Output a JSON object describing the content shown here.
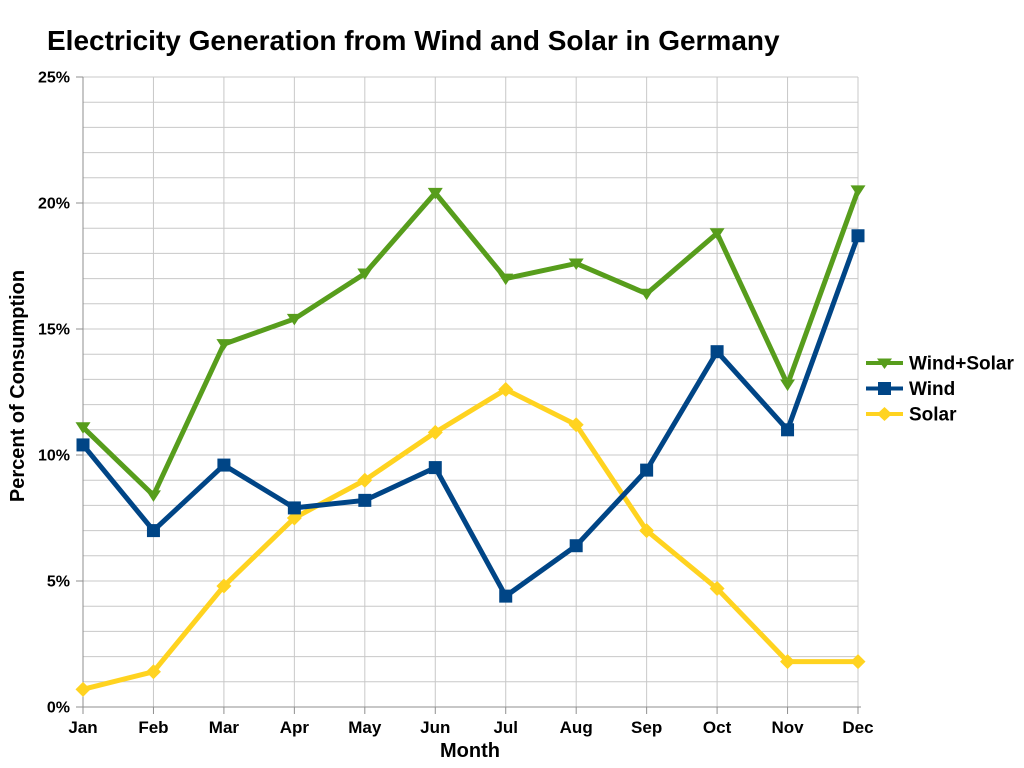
{
  "title": "Electricity Generation from Wind and Solar in Germany",
  "chart_data": {
    "type": "line",
    "title": "Electricity Generation from Wind and Solar in Germany",
    "xlabel": "Month",
    "ylabel": "Percent of Consumption",
    "categories": [
      "Jan",
      "Feb",
      "Mar",
      "Apr",
      "May",
      "Jun",
      "Jul",
      "Aug",
      "Sep",
      "Oct",
      "Nov",
      "Dec"
    ],
    "ylim": [
      0,
      25
    ],
    "y_ticks": [
      {
        "value": 0,
        "label": "0%"
      },
      {
        "value": 5,
        "label": "5%"
      },
      {
        "value": 10,
        "label": "10%"
      },
      {
        "value": 15,
        "label": "15%"
      },
      {
        "value": 20,
        "label": "20%"
      },
      {
        "value": 25,
        "label": "25%"
      }
    ],
    "grid": {
      "horizontal_interval_pct": 1,
      "vertical_interval": "every-month",
      "grid_color": "#c8c8c8",
      "axis_color": "#8f8f8f"
    },
    "legend_position": "right",
    "series": [
      {
        "name": "Wind+Solar",
        "color": "#579D1C",
        "marker": "triangle-down",
        "values": [
          11.1,
          8.4,
          14.4,
          15.4,
          17.2,
          20.4,
          17.0,
          17.6,
          16.4,
          18.8,
          12.8,
          20.5
        ]
      },
      {
        "name": "Wind",
        "color": "#004586",
        "marker": "square",
        "values": [
          10.4,
          7.0,
          9.6,
          7.9,
          8.2,
          9.5,
          4.4,
          6.4,
          9.4,
          14.1,
          11.0,
          18.7
        ]
      },
      {
        "name": "Solar",
        "color": "#FFD320",
        "marker": "diamond",
        "values": [
          0.7,
          1.4,
          4.8,
          7.5,
          9.0,
          10.9,
          12.6,
          11.2,
          7.0,
          4.7,
          1.8,
          1.8
        ]
      }
    ]
  }
}
